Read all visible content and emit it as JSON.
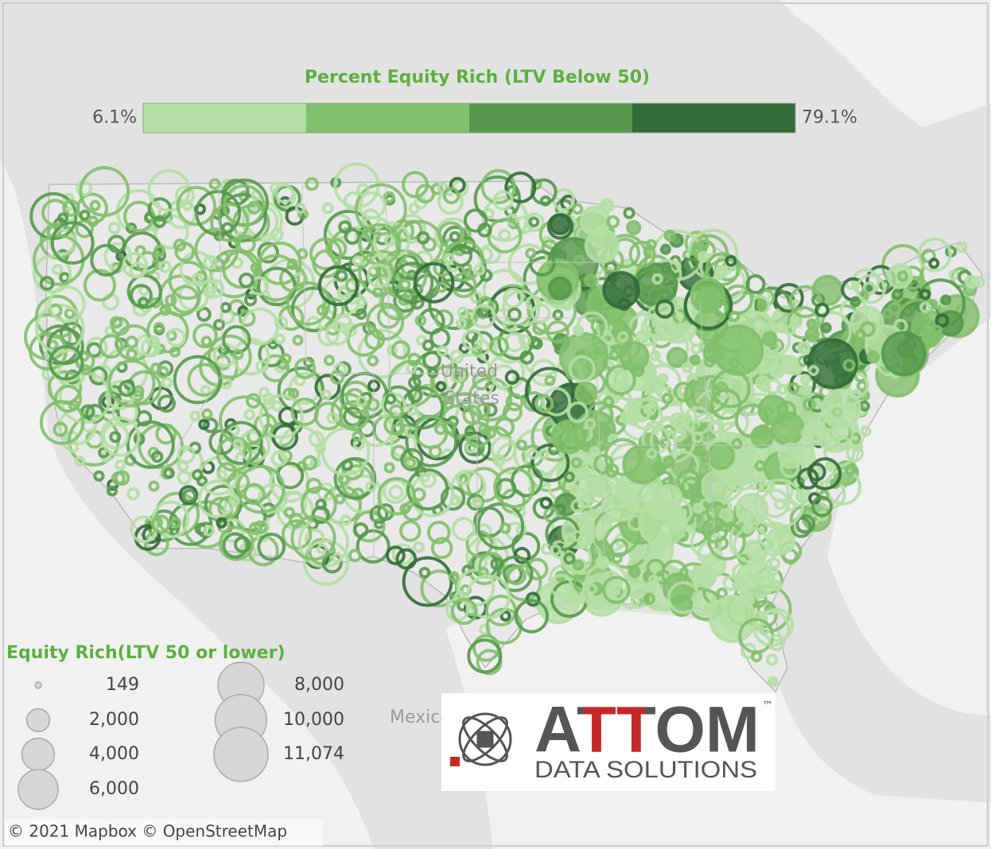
{
  "color_legend": {
    "title": "Percent Equity Rich (LTV Below 50)",
    "min_label": "6.1%",
    "max_label": "79.1%",
    "colors": [
      "#b4dea4",
      "#82bf6c",
      "#57994c",
      "#336b39"
    ]
  },
  "size_legend": {
    "title": "Equity Rich(LTV 50 or lower)",
    "entries": [
      {
        "value": 149,
        "label": "149"
      },
      {
        "value": 2000,
        "label": "2,000"
      },
      {
        "value": 4000,
        "label": "4,000"
      },
      {
        "value": 6000,
        "label": "6,000"
      },
      {
        "value": 8000,
        "label": "8,000"
      },
      {
        "value": 10000,
        "label": "10,000"
      },
      {
        "value": 11074,
        "label": "11,074"
      }
    ]
  },
  "map_labels": [
    "United",
    "States",
    "Mexico"
  ],
  "logo": {
    "name": "ATTOM",
    "trademark": "™",
    "subtitle": "DATA SOLUTIONS"
  },
  "attribution": "© 2021 Mapbox © OpenStreetMap"
}
